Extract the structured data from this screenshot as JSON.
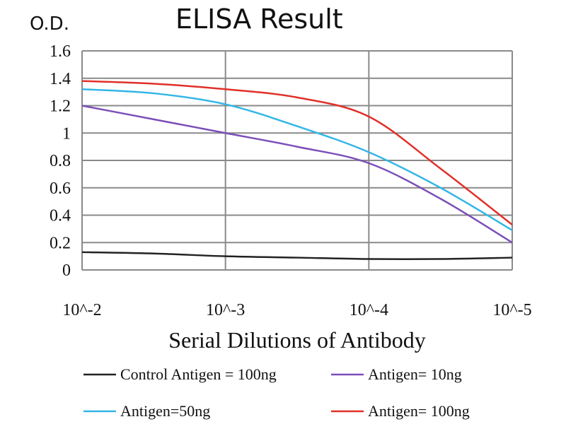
{
  "chart_data": {
    "type": "line",
    "title": "ELISA Result",
    "ylabel": "O.D.",
    "xlabel": "Serial Dilutions of Antibody",
    "x_ticks": [
      "10^-2",
      "10^-3",
      "10^-4",
      "10^-5"
    ],
    "y_ticks": [
      "0",
      "0.2",
      "0.4",
      "0.6",
      "0.8",
      "1",
      "1.2",
      "1.4",
      "1.6"
    ],
    "ylim": [
      0,
      1.6
    ],
    "grid": true,
    "legend_position": "bottom",
    "x": [
      0,
      0.5,
      1,
      1.5,
      2,
      2.5,
      3
    ],
    "series": [
      {
        "name": "Control Antigen = 100ng",
        "color": "#222222",
        "values": [
          0.13,
          0.12,
          0.1,
          0.09,
          0.08,
          0.08,
          0.09
        ]
      },
      {
        "name": "Antigen= 10ng",
        "color": "#7b4fb8",
        "values": [
          1.2,
          1.1,
          1.0,
          0.9,
          0.78,
          0.52,
          0.2
        ]
      },
      {
        "name": "Antigen=50ng",
        "color": "#33b6e6",
        "values": [
          1.32,
          1.29,
          1.21,
          1.05,
          0.86,
          0.6,
          0.29
        ]
      },
      {
        "name": "Antigen= 100ng",
        "color": "#e0302a",
        "values": [
          1.38,
          1.36,
          1.32,
          1.26,
          1.12,
          0.74,
          0.33
        ]
      }
    ]
  }
}
